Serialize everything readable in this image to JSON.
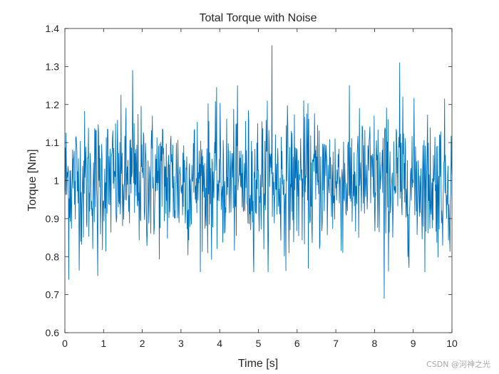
{
  "chart_data": {
    "type": "line",
    "title": "Total Torque with Noise",
    "xlabel": "Time [s]",
    "ylabel": "Torque [Nm]",
    "xlim": [
      0,
      10
    ],
    "ylim": [
      0.6,
      1.4
    ],
    "xticks": [
      0,
      1,
      2,
      3,
      4,
      5,
      6,
      7,
      8,
      9,
      10
    ],
    "yticks": [
      0.6,
      0.7,
      0.8,
      0.9,
      1.0,
      1.1,
      1.2,
      1.3,
      1.4
    ],
    "grid": false,
    "legend": "none",
    "series_color": "#0072BD",
    "mean": 1.0,
    "noise_std": 0.09,
    "sample_interval_s": 0.01,
    "key_points": [
      {
        "x": 0.1,
        "y": 0.74
      },
      {
        "x": 0.85,
        "y": 0.75
      },
      {
        "x": 1.75,
        "y": 1.29
      },
      {
        "x": 5.35,
        "y": 1.355
      },
      {
        "x": 8.25,
        "y": 0.69
      },
      {
        "x": 8.65,
        "y": 1.31
      }
    ]
  },
  "watermark": "CSDN @河神之光"
}
